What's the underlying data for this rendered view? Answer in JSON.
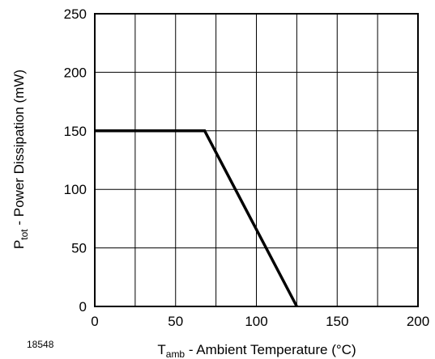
{
  "chart_data": {
    "type": "line",
    "title": "",
    "xlabel": {
      "main": "T",
      "sub": "amb",
      "rest": " - Ambient Temperature (°C)"
    },
    "ylabel": {
      "main": "P",
      "sub": "tot",
      "rest": " - Power Dissipation (mW)"
    },
    "xlim": [
      0,
      200
    ],
    "ylim": [
      0,
      250
    ],
    "xticks": [
      0,
      50,
      100,
      150,
      200
    ],
    "yticks": [
      0,
      50,
      100,
      150,
      200,
      250
    ],
    "xtick_labels": [
      "0",
      "50",
      "100",
      "150",
      "200"
    ],
    "ytick_labels": [
      "0",
      "50",
      "100",
      "150",
      "200",
      "250"
    ],
    "x_gridlines": [
      0,
      25,
      50,
      75,
      100,
      125,
      150,
      175,
      200
    ],
    "y_gridlines": [
      0,
      50,
      100,
      150,
      200,
      250
    ],
    "grid": true,
    "series": [
      {
        "x": [
          0,
          68,
          125
        ],
        "y": [
          150,
          150,
          0
        ],
        "color": "#000000"
      }
    ],
    "figure_number": "18548"
  }
}
